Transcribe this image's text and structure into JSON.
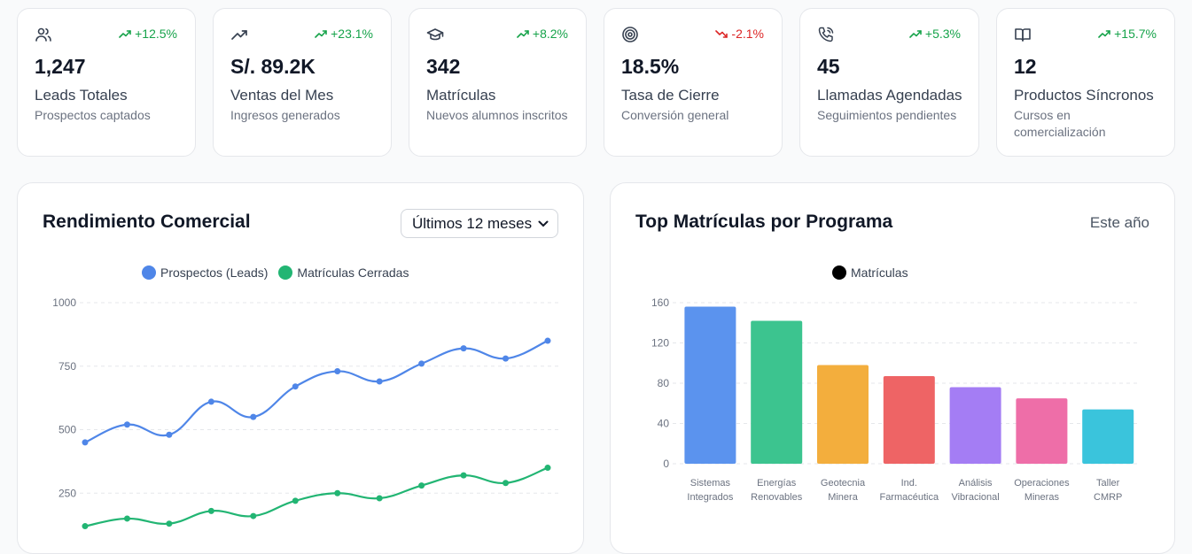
{
  "colors": {
    "positive": "#16a34a",
    "negative": "#dc2626",
    "leads": "#4f86e8",
    "closed": "#22b573"
  },
  "stats": [
    {
      "icon": "users-icon",
      "trend": "+12.5%",
      "direction": "up",
      "value": "1,247",
      "label": "Leads Totales",
      "desc": "Prospectos captados"
    },
    {
      "icon": "trending-up-icon",
      "trend": "+23.1%",
      "direction": "up",
      "value": "S/. 89.2K",
      "label": "Ventas del Mes",
      "desc": "Ingresos generados"
    },
    {
      "icon": "graduation-cap-icon",
      "trend": "+8.2%",
      "direction": "up",
      "value": "342",
      "label": "Matrículas",
      "desc": "Nuevos alumnos inscritos"
    },
    {
      "icon": "target-icon",
      "trend": "-2.1%",
      "direction": "down",
      "value": "18.5%",
      "label": "Tasa de Cierre",
      "desc": "Conversión general"
    },
    {
      "icon": "phone-call-icon",
      "trend": "+5.3%",
      "direction": "up",
      "value": "45",
      "label": "Llamadas Agendadas",
      "desc": "Seguimientos pendientes"
    },
    {
      "icon": "book-open-icon",
      "trend": "+15.7%",
      "direction": "up",
      "value": "12",
      "label": "Productos Síncronos",
      "desc": "Cursos en comercialización"
    }
  ],
  "performance": {
    "title": "Rendimiento Comercial",
    "range_selected": "Últimos 12 meses"
  },
  "enrollments": {
    "title": "Top Matrículas por Programa",
    "period": "Este año"
  },
  "chart_data": [
    {
      "type": "line",
      "x": [
        1,
        2,
        3,
        4,
        5,
        6,
        7,
        8,
        9,
        10,
        11,
        12
      ],
      "series": [
        {
          "name": "Prospectos (Leads)",
          "color": "#4f86e8",
          "values": [
            450,
            520,
            480,
            610,
            550,
            670,
            730,
            690,
            760,
            820,
            780,
            850
          ]
        },
        {
          "name": "Matrículas Cerradas",
          "color": "#22b573",
          "values": [
            120,
            150,
            130,
            180,
            160,
            220,
            250,
            230,
            280,
            320,
            290,
            350
          ]
        }
      ],
      "yticks": [
        250,
        500,
        750,
        1000
      ],
      "ylim": [
        0,
        1000
      ],
      "grid": true,
      "legend": "top-center"
    },
    {
      "type": "bar",
      "categories": [
        [
          "Sistemas",
          "Integrados"
        ],
        [
          "Energías",
          "Renovables"
        ],
        [
          "Geotecnia",
          "Minera"
        ],
        [
          "Ind.",
          "Farmacéutica"
        ],
        [
          "Análisis",
          "Vibracional"
        ],
        [
          "Operaciones",
          "Mineras"
        ],
        [
          "Taller",
          "CMRP"
        ]
      ],
      "series": [
        {
          "name": "Matrículas",
          "legend_color": "#000000",
          "values": [
            156,
            142,
            98,
            87,
            76,
            65,
            54
          ]
        }
      ],
      "bar_colors": [
        "#5b93ee",
        "#3cc48f",
        "#f3ae3d",
        "#ee6465",
        "#a47df4",
        "#ee6ea8",
        "#3ac4dc"
      ],
      "yticks": [
        0,
        40,
        80,
        120,
        160
      ],
      "ylim": [
        0,
        160
      ],
      "grid": true,
      "legend": "top-center"
    }
  ]
}
